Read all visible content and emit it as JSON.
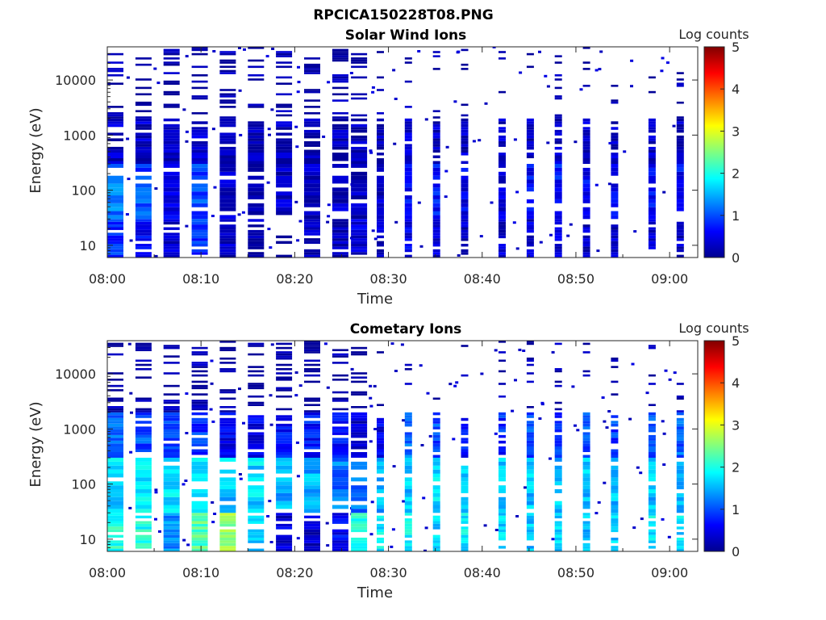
{
  "figure_title": "RPCICA150228T08.PNG",
  "colormap": [
    "#00008f",
    "#0000ff",
    "#0080ff",
    "#00ffff",
    "#80ff80",
    "#ffff00",
    "#ff8000",
    "#ff0000",
    "#800000"
  ],
  "chart_data": [
    {
      "type": "heatmap",
      "title": "Solar Wind Ions",
      "xlabel": "Time",
      "ylabel": "Energy (eV)",
      "colorbar_label": "Log counts",
      "colorbar_range": [
        0,
        5
      ],
      "colorbar_ticks": [
        "0",
        "1",
        "2",
        "3",
        "4",
        "5"
      ],
      "x_range": [
        "08:00",
        "09:03"
      ],
      "x_ticks": [
        "08:00",
        "08:10",
        "08:20",
        "08:30",
        "08:40",
        "08:50",
        "09:00"
      ],
      "y_scale": "log",
      "y_range": [
        6,
        40000
      ],
      "y_ticks": [
        "10",
        "100",
        "1000",
        "10000"
      ],
      "time_columns": [
        "08:00",
        "08:03",
        "08:06",
        "08:09",
        "08:12",
        "08:15",
        "08:18",
        "08:21",
        "08:24",
        "08:26",
        "08:29",
        "08:32",
        "08:35",
        "08:38",
        "08:42",
        "08:45",
        "08:48",
        "08:51",
        "08:54",
        "08:58",
        "09:01"
      ],
      "bands": [
        {
          "min": 6,
          "max": 30,
          "intensity": [
            0.8,
            0.6,
            0.4,
            0.8,
            0.3,
            0.2,
            0.0,
            0.2,
            0.2,
            0.4,
            0.3,
            0.5,
            0.4,
            0.3,
            0.3,
            0.4,
            0.4,
            0.3,
            0.3,
            0.3,
            0.3
          ]
        },
        {
          "min": 30,
          "max": 300,
          "intensity": [
            1.2,
            1.0,
            0.5,
            1.0,
            0.4,
            0.2,
            0.3,
            0.3,
            0.3,
            0.2,
            0.3,
            0.6,
            0.7,
            0.5,
            0.4,
            0.6,
            0.7,
            0.6,
            0.6,
            0.7,
            0.6
          ]
        },
        {
          "min": 300,
          "max": 2000,
          "intensity": [
            0.3,
            0.3,
            0.2,
            0.3,
            0.2,
            0.2,
            0.2,
            0.2,
            0.2,
            0.2,
            0.2,
            0.3,
            0.3,
            0.3,
            0.3,
            0.3,
            0.3,
            0.3,
            0.3,
            0.3,
            0.3
          ]
        },
        {
          "min": 2000,
          "max": 40000,
          "intensity": [
            0.1,
            0.1,
            0.1,
            0.1,
            0.1,
            0.1,
            0.1,
            0.0,
            0.1,
            0.0,
            0.1,
            0.1,
            0.1,
            0.1,
            0.1,
            0.1,
            0.1,
            0.1,
            0.1,
            0.1,
            0.1
          ]
        }
      ]
    },
    {
      "type": "heatmap",
      "title": "Cometary Ions",
      "xlabel": "Time",
      "ylabel": "Energy (eV)",
      "colorbar_label": "Log counts",
      "colorbar_range": [
        0,
        5
      ],
      "colorbar_ticks": [
        "0",
        "1",
        "2",
        "3",
        "4",
        "5"
      ],
      "x_range": [
        "08:00",
        "09:03"
      ],
      "x_ticks": [
        "08:00",
        "08:10",
        "08:20",
        "08:30",
        "08:40",
        "08:50",
        "09:00"
      ],
      "y_scale": "log",
      "y_range": [
        6,
        40000
      ],
      "y_ticks": [
        "10",
        "100",
        "1000",
        "10000"
      ],
      "time_columns": [
        "08:00",
        "08:03",
        "08:06",
        "08:09",
        "08:12",
        "08:15",
        "08:18",
        "08:21",
        "08:24",
        "08:26",
        "08:29",
        "08:32",
        "08:35",
        "08:38",
        "08:42",
        "08:45",
        "08:48",
        "08:51",
        "08:54",
        "08:58",
        "09:01"
      ],
      "bands": [
        {
          "min": 6,
          "max": 30,
          "intensity": [
            2.0,
            2.0,
            1.3,
            2.3,
            2.6,
            1.7,
            0.4,
            0.3,
            0.6,
            2.0,
            1.8,
            1.8,
            1.6,
            1.8,
            1.7,
            1.6,
            1.6,
            1.6,
            1.6,
            1.8,
            1.7
          ]
        },
        {
          "min": 30,
          "max": 300,
          "intensity": [
            1.7,
            1.8,
            1.7,
            1.8,
            1.6,
            1.7,
            1.5,
            1.5,
            1.2,
            1.2,
            1.5,
            1.6,
            1.7,
            1.6,
            1.6,
            1.6,
            1.6,
            1.6,
            1.6,
            1.6,
            1.6
          ]
        },
        {
          "min": 300,
          "max": 2000,
          "intensity": [
            1.1,
            1.0,
            0.9,
            0.9,
            0.5,
            0.5,
            0.7,
            0.7,
            0.7,
            0.3,
            0.5,
            1.2,
            1.0,
            0.7,
            0.8,
            1.0,
            0.9,
            1.0,
            0.9,
            1.0,
            1.1
          ]
        },
        {
          "min": 2000,
          "max": 40000,
          "intensity": [
            0.1,
            0.1,
            0.1,
            0.1,
            0.0,
            0.0,
            0.0,
            0.0,
            0.1,
            0.0,
            0.0,
            0.1,
            0.1,
            0.1,
            0.1,
            0.1,
            0.1,
            0.1,
            0.1,
            0.1,
            0.1
          ]
        }
      ]
    }
  ]
}
